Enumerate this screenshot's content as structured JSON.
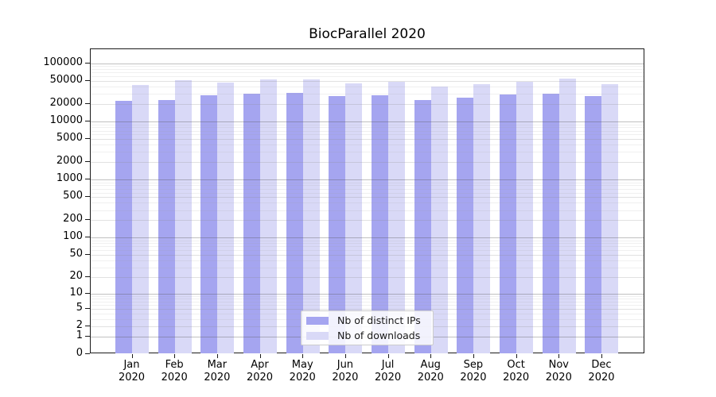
{
  "title": "BiocParallel 2020",
  "colors": {
    "distinct_ips_bar": "#a5a5f0",
    "downloads_bar": "#d9d9f7",
    "axis": "#1a1a1a",
    "grid_major": "#c8c8c8",
    "grid_minor": "#ececec",
    "legend_border": "#cccccc"
  },
  "legend": {
    "position": "lower center",
    "items": [
      {
        "label": "Nb of distinct IPs",
        "color": "#a5a5f0"
      },
      {
        "label": "Nb of downloads",
        "color": "#d9d9f7"
      }
    ]
  },
  "chart_data": {
    "type": "bar",
    "title": "BiocParallel 2020",
    "categories": [
      "Jan 2020",
      "Feb 2020",
      "Mar 2020",
      "Apr 2020",
      "May 2020",
      "Jun 2020",
      "Jul 2020",
      "Aug 2020",
      "Sep 2020",
      "Oct 2020",
      "Nov 2020",
      "Dec 2020"
    ],
    "series": [
      {
        "name": "Nb of distinct IPs",
        "color": "#a5a5f0",
        "values": [
          23000,
          23500,
          28000,
          30500,
          31500,
          27500,
          28000,
          23500,
          25500,
          29500,
          30500,
          27500
        ]
      },
      {
        "name": "Nb of downloads",
        "color": "#d9d9f7",
        "values": [
          42500,
          51000,
          46500,
          52500,
          52500,
          46000,
          49000,
          40000,
          44000,
          48000,
          55500,
          44000
        ]
      }
    ],
    "xlabel": "",
    "ylabel": "",
    "yscale": "log10(value+1)",
    "ylim": [
      0,
      100000
    ],
    "yticks": [
      0,
      1,
      2,
      5,
      10,
      20,
      50,
      100,
      200,
      500,
      1000,
      2000,
      5000,
      10000,
      20000,
      50000,
      100000
    ],
    "grid": true,
    "legend_position": "lower center"
  }
}
